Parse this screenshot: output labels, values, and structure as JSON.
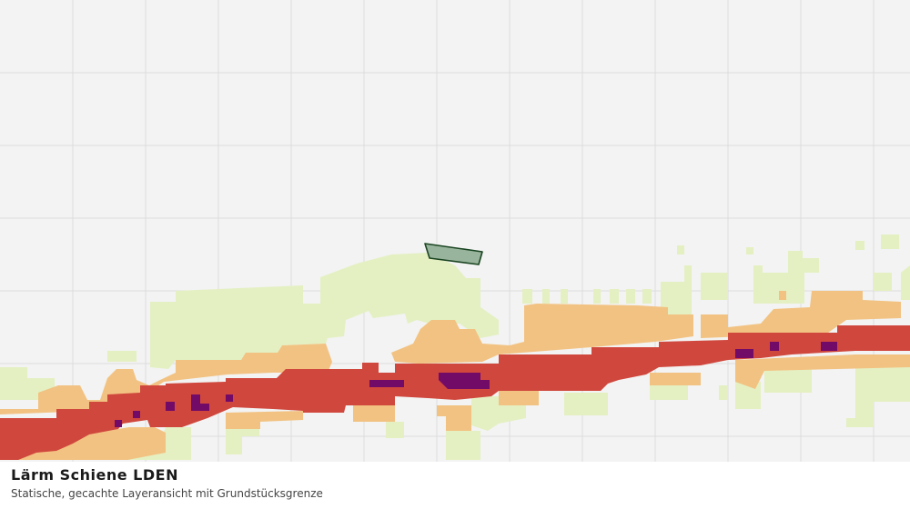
{
  "map": {
    "layer_title": "Lärm Schiene LDEN",
    "layer_subtitle": "Statische, gecachte Layeransicht mit Grundstücksgrenze",
    "colors": {
      "background": "#f2f3f2",
      "grid": "#dddddd",
      "noise_class_lowest": "#e4f0c2",
      "noise_class_low": "#f2c282",
      "noise_class_high": "#d0473d",
      "noise_class_highest": "#720b68",
      "parcel_fill": "#98b49c",
      "parcel_stroke": "#1b4522"
    }
  }
}
